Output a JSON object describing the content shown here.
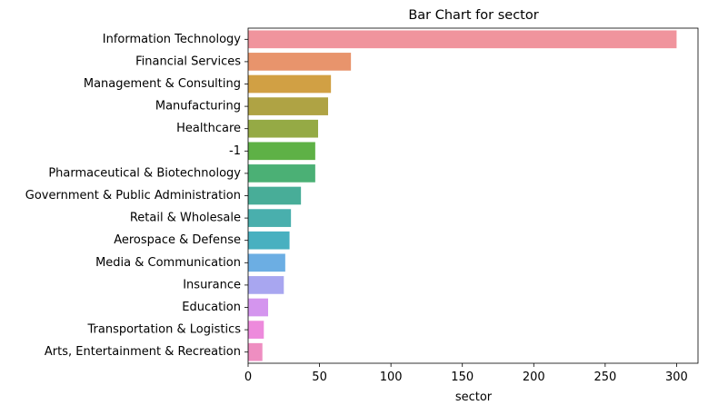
{
  "chart_data": {
    "type": "bar",
    "orientation": "horizontal",
    "title": "Bar Chart for sector",
    "xlabel": "sector",
    "ylabel": "",
    "xlim": [
      0,
      315
    ],
    "xticks": [
      0,
      50,
      100,
      150,
      200,
      250,
      300
    ],
    "grid": false,
    "legend": "none",
    "categories": [
      "Information Technology",
      "Financial Services",
      "Management & Consulting",
      "Manufacturing",
      "Healthcare",
      "-1",
      "Pharmaceutical & Biotechnology",
      "Government & Public Administration",
      "Retail & Wholesale",
      "Aerospace & Defense",
      "Media & Communication",
      "Insurance",
      "Education",
      "Transportation & Logistics",
      "Arts, Entertainment & Recreation"
    ],
    "values": [
      300,
      72,
      58,
      56,
      49,
      47,
      47,
      37,
      30,
      29,
      26,
      25,
      14,
      11,
      10
    ],
    "colors": [
      "#f0949d",
      "#e8946c",
      "#d1a044",
      "#afa344",
      "#95aa45",
      "#5eb146",
      "#4bb075",
      "#48ad98",
      "#49afad",
      "#48b0c0",
      "#6caee3",
      "#a8a6f0",
      "#d495ee",
      "#ed8adc",
      "#ee8ec1"
    ]
  }
}
